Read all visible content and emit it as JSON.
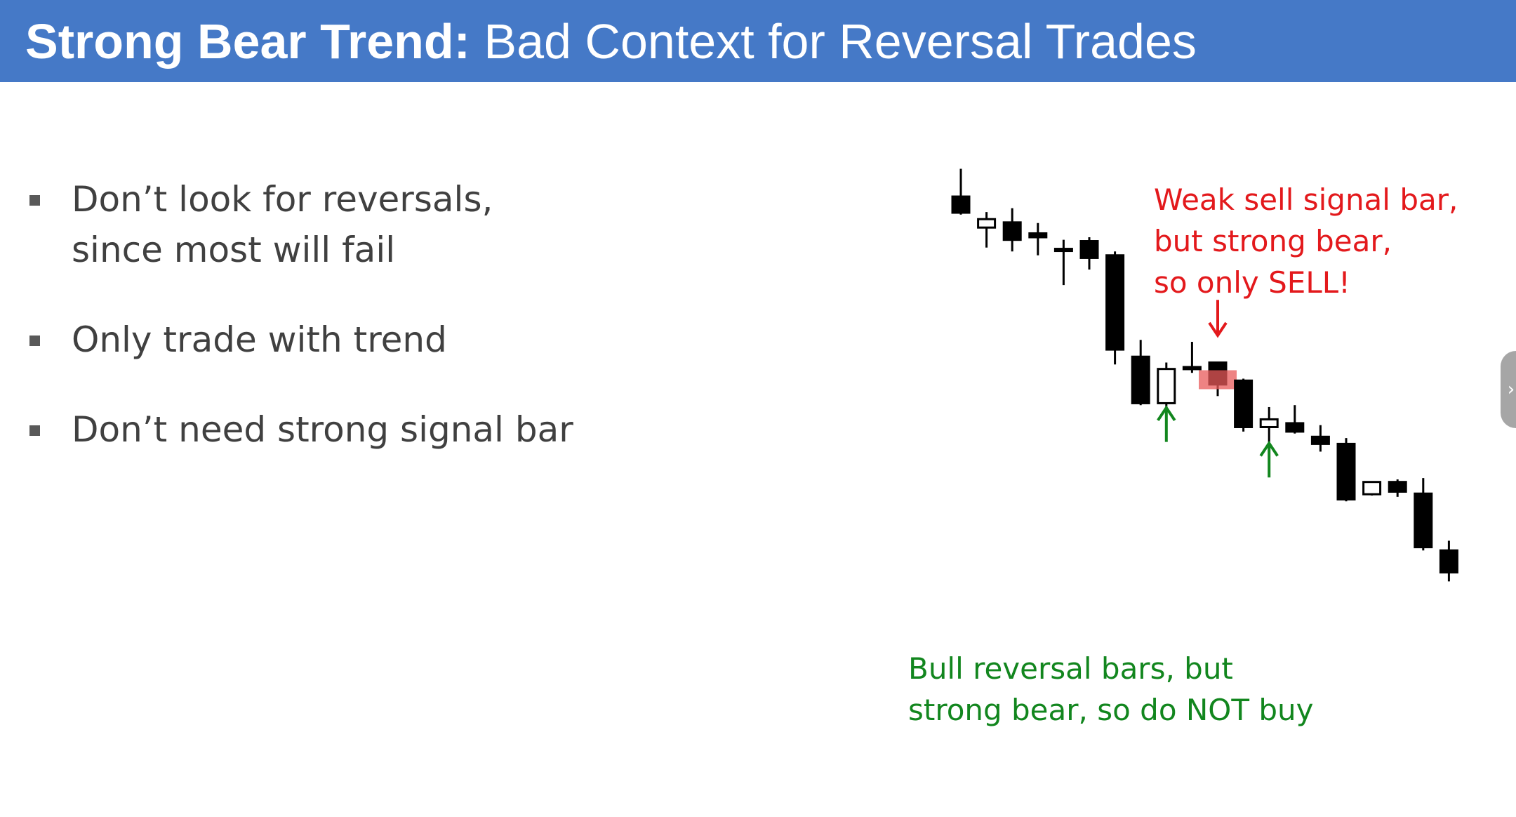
{
  "slide": {
    "title_bold": "Strong Bear Trend:",
    "title_rest": "Bad Context for Reversal Trades",
    "bullets": [
      {
        "lines": [
          "Don’t look for reversals,",
          "since most will fail"
        ]
      },
      {
        "lines": [
          "Only trade with trend"
        ]
      },
      {
        "lines": [
          "Don’t need strong signal bar"
        ]
      }
    ],
    "annotations": {
      "sell": {
        "lines": [
          "Weak sell signal bar,",
          "but strong bear,",
          "so only SELL!"
        ],
        "color": "#e3191c"
      },
      "buy": {
        "lines": [
          "Bull reversal bars, but",
          "strong bear, so do NOT buy"
        ],
        "color": "#12861e"
      }
    },
    "side_tab_glyph": "›",
    "colors": {
      "title_bar": "#4579c7",
      "bullet_text": "#404040",
      "sell_arrow": "#e3191c",
      "buy_arrow": "#12861e",
      "signal_highlight": "#e85a5a"
    }
  },
  "chart_data": {
    "type": "candlestick",
    "trend": "bear",
    "price_range": [
      0,
      100
    ],
    "candles": [
      {
        "o": 91.3,
        "h": 95.6,
        "l": 88.5,
        "c": 88.8,
        "bull": false
      },
      {
        "o": 86.5,
        "h": 88.9,
        "l": 83.4,
        "c": 87.8,
        "bull": true
      },
      {
        "o": 87.3,
        "h": 89.5,
        "l": 82.8,
        "c": 84.6,
        "bull": false
      },
      {
        "o": 85.6,
        "h": 87.2,
        "l": 82.2,
        "c": 85.0,
        "bull": false
      },
      {
        "o": 83.2,
        "h": 84.6,
        "l": 77.6,
        "c": 83.0,
        "bull": false
      },
      {
        "o": 84.4,
        "h": 85.0,
        "l": 80.0,
        "c": 81.8,
        "bull": false
      },
      {
        "o": 82.2,
        "h": 82.8,
        "l": 65.3,
        "c": 67.6,
        "bull": false
      },
      {
        "o": 66.5,
        "h": 69.1,
        "l": 59.0,
        "c": 59.3,
        "bull": false
      },
      {
        "o": 59.3,
        "h": 65.6,
        "l": 58.6,
        "c": 64.6,
        "bull": true
      },
      {
        "o": 64.9,
        "h": 68.8,
        "l": 64.0,
        "c": 64.9,
        "bull": false
      },
      {
        "o": 65.6,
        "h": 65.6,
        "l": 60.4,
        "c": 62.2,
        "bull": false,
        "signal": true
      },
      {
        "o": 62.8,
        "h": 63.1,
        "l": 54.9,
        "c": 55.6,
        "bull": false
      },
      {
        "o": 55.6,
        "h": 58.7,
        "l": 51.8,
        "c": 56.8,
        "bull": true
      },
      {
        "o": 56.2,
        "h": 59.0,
        "l": 54.6,
        "c": 54.9,
        "bull": false
      },
      {
        "o": 54.1,
        "h": 55.9,
        "l": 51.8,
        "c": 53.0,
        "bull": false
      },
      {
        "o": 53.0,
        "h": 53.9,
        "l": 44.1,
        "c": 44.4,
        "bull": false
      },
      {
        "o": 45.2,
        "h": 47.1,
        "l": 45.0,
        "c": 47.1,
        "bull": true
      },
      {
        "o": 47.1,
        "h": 47.5,
        "l": 44.8,
        "c": 45.6,
        "bull": false
      },
      {
        "o": 45.3,
        "h": 47.7,
        "l": 36.5,
        "c": 37.0,
        "bull": false
      },
      {
        "o": 36.5,
        "h": 38.0,
        "l": 31.7,
        "c": 33.1,
        "bull": false
      }
    ],
    "sell_arrow_at_candle": 10,
    "buy_arrows_at_candles": [
      8,
      12
    ]
  }
}
